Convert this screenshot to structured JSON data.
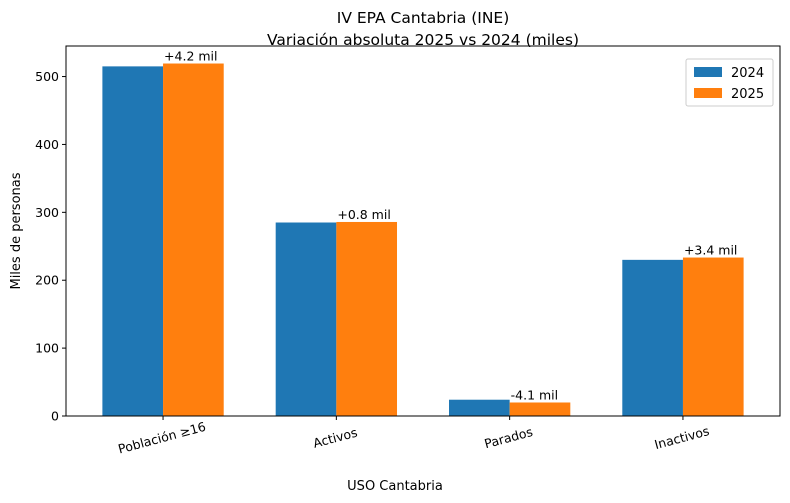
{
  "chart_data": {
    "type": "bar",
    "title_lines": [
      "IV EPA Cantabria (INE)",
      "Variación absoluta 2025 vs 2024 (miles)"
    ],
    "xlabel": "USO Cantabria",
    "ylabel": "Miles de personas",
    "categories": [
      "Población ≥16",
      "Activos",
      "Parados",
      "Inactivos"
    ],
    "series": [
      {
        "name": "2024",
        "color": "#1f77b4",
        "values": [
          515.0,
          285.0,
          24.0,
          230.0
        ]
      },
      {
        "name": "2025",
        "color": "#ff7f0e",
        "values": [
          519.2,
          285.8,
          19.9,
          233.4
        ]
      }
    ],
    "data_labels": [
      "+4.2 mil",
      "+0.8 mil",
      "-4.1 mil",
      "+3.4 mil"
    ],
    "ylim": [
      0,
      545
    ],
    "yticks": [
      0,
      100,
      200,
      300,
      400,
      500
    ],
    "legend_position": "top-right",
    "grid": false
  }
}
